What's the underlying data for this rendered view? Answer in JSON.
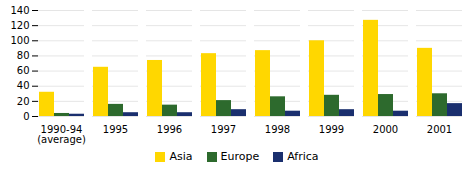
{
  "chart_data": {
    "type": "bar",
    "categories": [
      "1990-94\n(average)",
      "1995",
      "1996",
      "1997",
      "1998",
      "1999",
      "2000",
      "2001"
    ],
    "series": [
      {
        "name": "Asia",
        "color": "#FFD700",
        "values": [
          32,
          65,
          74,
          83,
          87,
          100,
          127,
          90
        ]
      },
      {
        "name": "Europe",
        "color": "#2d6a2d",
        "values": [
          4,
          16,
          15,
          21,
          26,
          28,
          29,
          30
        ]
      },
      {
        "name": "Africa",
        "color": "#1a2f6e",
        "values": [
          3,
          5,
          5,
          9,
          7,
          9,
          7,
          17
        ]
      }
    ],
    "ylim": [
      0,
      140
    ],
    "yticks": [
      0,
      20,
      40,
      60,
      80,
      100,
      120,
      140
    ],
    "grid": true,
    "legend": "bottom"
  }
}
